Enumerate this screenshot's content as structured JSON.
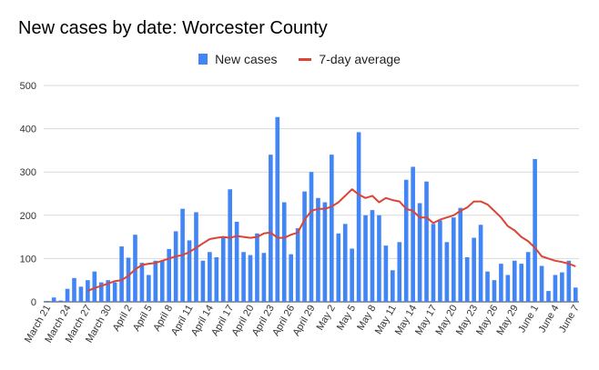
{
  "chart_data": {
    "type": "bar",
    "title": "New cases by date: Worcester County",
    "colors": {
      "bars": "#4285f4",
      "line": "#db4437",
      "grid": "#d9d9d9"
    },
    "ylim": [
      0,
      500
    ],
    "yticks": [
      0,
      100,
      200,
      300,
      400,
      500
    ],
    "grid": true,
    "legend_position": "top-center",
    "xtick_labels": [
      "March 21",
      "March 24",
      "March 27",
      "March 30",
      "April 2",
      "April 5",
      "April 8",
      "April 11",
      "April 14",
      "April 17",
      "April 20",
      "April 23",
      "April 26",
      "April 29",
      "May 2",
      "May 5",
      "May 8",
      "May 11",
      "May 14",
      "May 17",
      "May 20",
      "May 23",
      "May 26",
      "May 29",
      "June 1",
      "June 4",
      "June 7"
    ],
    "series": [
      {
        "name": "New cases",
        "kind": "bar",
        "values": [
          2,
          10,
          3,
          30,
          55,
          35,
          50,
          70,
          45,
          50,
          45,
          128,
          102,
          155,
          90,
          62,
          95,
          95,
          122,
          163,
          215,
          142,
          207,
          95,
          115,
          103,
          148,
          260,
          185,
          115,
          108,
          158,
          113,
          340,
          427,
          230,
          110,
          170,
          255,
          300,
          240,
          230,
          340,
          158,
          180,
          123,
          392,
          200,
          212,
          200,
          130,
          73,
          138,
          282,
          312,
          228,
          278,
          180,
          188,
          138,
          195,
          217,
          103,
          148,
          178,
          70,
          50,
          88,
          62,
          95,
          88,
          115,
          330,
          83,
          25,
          62,
          68,
          95,
          33
        ]
      },
      {
        "name": "7-day average",
        "kind": "line",
        "values": [
          null,
          null,
          null,
          null,
          null,
          null,
          25,
          32,
          37,
          42,
          48,
          50,
          60,
          75,
          85,
          88,
          90,
          95,
          100,
          105,
          108,
          115,
          125,
          135,
          145,
          148,
          150,
          148,
          152,
          150,
          148,
          150,
          158,
          160,
          148,
          148,
          155,
          160,
          190,
          210,
          215,
          215,
          220,
          230,
          245,
          260,
          248,
          240,
          245,
          230,
          240,
          235,
          232,
          215,
          210,
          195,
          195,
          182,
          190,
          195,
          200,
          210,
          218,
          232,
          232,
          225,
          210,
          195,
          175,
          165,
          150,
          140,
          125,
          105,
          100,
          95,
          92,
          88,
          82
        ]
      }
    ]
  }
}
